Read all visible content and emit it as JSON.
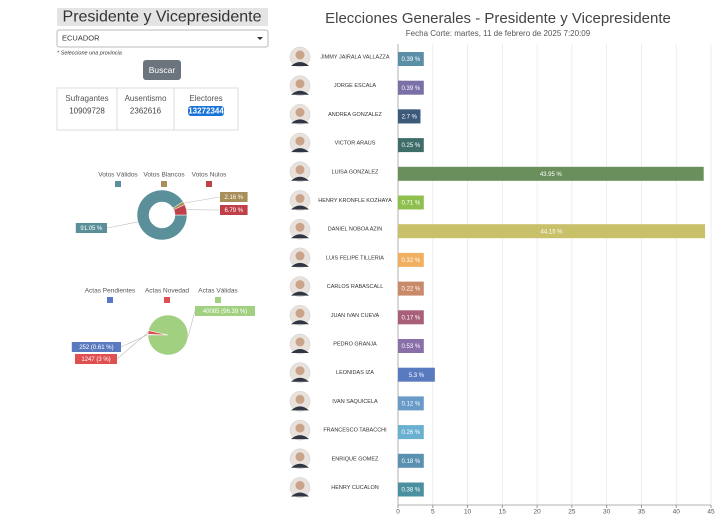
{
  "header": {
    "title": "Presidente y Vicepresidente"
  },
  "form": {
    "province": "ECUADOR",
    "hint": "* Seleccione una provincia",
    "button": "Buscar"
  },
  "stats": [
    {
      "label": "Sufragantes",
      "value": 10909728
    },
    {
      "label": "Ausentismo",
      "value": 2362616
    },
    {
      "label": "Electores",
      "value": 13272344
    }
  ],
  "chart_data": [
    {
      "type": "pie",
      "donut": true,
      "categories": [
        "Votos Válidos",
        "Votos Blancos",
        "Votos Nulos"
      ],
      "values": [
        91.05,
        2.16,
        6.79
      ],
      "value_labels": [
        "91.05 %",
        "2.16 %",
        "6.79 %"
      ],
      "colors": [
        "#5b8f9a",
        "#a88f5a",
        "#c0404a"
      ]
    },
    {
      "type": "pie",
      "donut": false,
      "categories": [
        "Actas Pendientes",
        "Actas Novedad",
        "Actas Válidas"
      ],
      "values": [
        252,
        1247,
        40085
      ],
      "value_labels": [
        "252 (0.61 %)",
        "1247 (3 %)",
        "40085 (96.39 %)"
      ],
      "colors": [
        "#5a7ac0",
        "#e05050",
        "#a0d080"
      ]
    },
    {
      "type": "bar",
      "title": "Elecciones Generales - Presidente y Vicepresidente",
      "subtitle": "Fecha Corte: martes, 11 de febrero de 2025 7:20:09",
      "categories": [
        "JIMMY JAIRALA VALLAZZA",
        "JORGE ESCALA",
        "ANDREA GONZALEZ",
        "VICTOR ARAUS",
        "LUISA GONZALEZ",
        "HENRY KRONFLE KOZHAYA",
        "DANIEL NOBOA AZIN",
        "LUIS FELIPE TILLERIA",
        "CARLOS RABASCALL",
        "JUAN IVAN CUEVA",
        "PEDRO GRANJA",
        "LEONIDAS IZA",
        "IVAN SAQUICELA",
        "FRANCESCO TABACCHI",
        "ENRIQUE GOMEZ",
        "HENRY CUCALON"
      ],
      "values": [
        0.39,
        0.39,
        2.7,
        0.25,
        43.95,
        0.71,
        44.15,
        0.32,
        0.22,
        0.17,
        0.53,
        5.3,
        0.12,
        0.26,
        0.18,
        0.38
      ],
      "value_labels": [
        "0.39 %",
        "0.39 %",
        "2.7 %",
        "0.25 %",
        "43.95 %",
        "0.71 %",
        "44.15 %",
        "0.32 %",
        "0.22 %",
        "0.17 %",
        "0.53 %",
        "5.3 %",
        "0.12 %",
        "0.26 %",
        "0.18 %",
        "0.38 %"
      ],
      "colors": [
        "#5b8fa8",
        "#7b6fa8",
        "#3e5a7a",
        "#3f6e6a",
        "#6a8f5c",
        "#8fc04f",
        "#c9c06a",
        "#f0b060",
        "#c98a6a",
        "#a8607a",
        "#8a70a8",
        "#5a7ac0",
        "#6a9ac8",
        "#6ab0d0",
        "#5a90b0",
        "#4a90a0"
      ],
      "xlim": [
        0,
        45
      ],
      "xticks": [
        0,
        5,
        10,
        15,
        20,
        25,
        30,
        35,
        40,
        45
      ],
      "grid": true
    }
  ]
}
